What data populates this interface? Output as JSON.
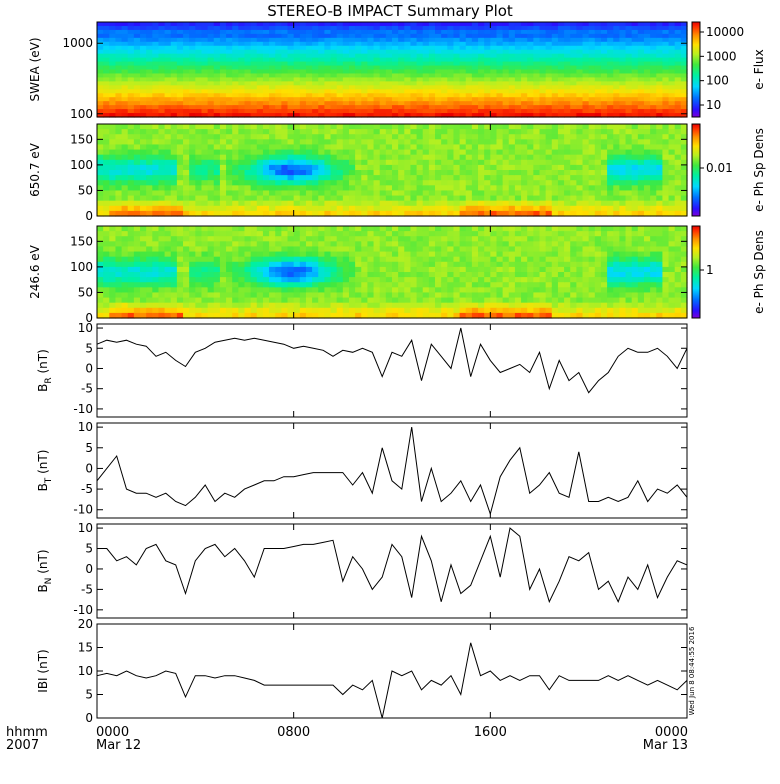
{
  "chart_data": {
    "title": "STEREO-B IMPACT Summary Plot",
    "date_stamp": "Wed Jun  8 08:44:55 2016",
    "x_axis": {
      "label_top": "hhmm",
      "label_bottom": "2007",
      "ticks": [
        {
          "value": 0,
          "top": "0000",
          "bottom": "Mar 12"
        },
        {
          "value": 8,
          "top": "0800",
          "bottom": ""
        },
        {
          "value": 16,
          "top": "1600",
          "bottom": ""
        },
        {
          "value": 24,
          "top": "0000",
          "bottom": "Mar 13"
        }
      ],
      "range_hours": [
        0,
        24
      ]
    },
    "spectrograms": [
      {
        "name": "swea",
        "type": "heatmap",
        "ylabel": "SWEA (eV)",
        "yscale": "log",
        "ylim": [
          90,
          2000
        ],
        "yticks": [
          "1000",
          "100"
        ],
        "ytick_values": [
          1000,
          100
        ],
        "colorbar_label": "e- Flux",
        "colorbar_ticks": [
          "10000",
          "1000",
          "100",
          "10"
        ],
        "colorbar_range_log": [
          0.5,
          4.2
        ]
      },
      {
        "name": "pad-650",
        "type": "heatmap",
        "ylabel": "650.7 eV",
        "ylim": [
          0,
          180
        ],
        "yticks": [
          "150",
          "100",
          "50",
          "0"
        ],
        "ytick_values": [
          150,
          100,
          50,
          0
        ],
        "colorbar_label": "e- Ph Sp Dens",
        "colorbar_ticks": [
          "0.01"
        ]
      },
      {
        "name": "pad-246",
        "type": "heatmap",
        "ylabel": "246.6 eV",
        "ylim": [
          0,
          180
        ],
        "yticks": [
          "150",
          "100",
          "50",
          "0"
        ],
        "ytick_values": [
          150,
          100,
          50,
          0
        ],
        "colorbar_label": "e- Ph Sp Dens",
        "colorbar_ticks": [
          "1"
        ]
      }
    ],
    "line_panels": [
      {
        "name": "br",
        "type": "line",
        "ylabel_main": "B",
        "ylabel_sub": "R",
        "ylabel_unit": " (nT)",
        "ylim": [
          -12,
          11
        ],
        "yticks": [
          "10",
          "5",
          "0",
          "-5",
          "-10"
        ],
        "ytick_values": [
          10,
          5,
          0,
          -5,
          -10
        ],
        "x": [
          0,
          0.4,
          0.8,
          1.2,
          1.6,
          2.0,
          2.4,
          2.8,
          3.2,
          3.6,
          4.0,
          4.4,
          4.8,
          5.2,
          5.6,
          6.0,
          6.4,
          6.8,
          7.2,
          7.6,
          8.0,
          8.4,
          8.8,
          9.2,
          9.6,
          10.0,
          10.4,
          10.8,
          11.2,
          11.6,
          12.0,
          12.4,
          12.8,
          13.2,
          13.6,
          14.0,
          14.4,
          14.8,
          15.2,
          15.6,
          16.0,
          16.4,
          16.8,
          17.2,
          17.6,
          18.0,
          18.4,
          18.8,
          19.2,
          19.6,
          20.0,
          20.4,
          20.8,
          21.2,
          21.6,
          22.0,
          22.4,
          22.8,
          23.2,
          23.6,
          24.0
        ],
        "y": [
          6,
          7,
          6.5,
          7,
          6,
          5.5,
          3,
          4,
          2,
          0.5,
          4,
          5,
          6.5,
          7,
          7.5,
          7,
          7.5,
          7,
          6.5,
          6,
          5,
          5.5,
          5,
          4.5,
          3,
          4.5,
          4,
          5,
          4,
          -2,
          4,
          3,
          7,
          -3,
          6,
          3,
          0,
          10,
          -2,
          6,
          2,
          -1,
          0,
          1,
          -1,
          4,
          -5,
          2,
          -3,
          -1,
          -6,
          -3,
          -1,
          3,
          5,
          4,
          4,
          5,
          3,
          0,
          5
        ]
      },
      {
        "name": "bt",
        "type": "line",
        "ylabel_main": "B",
        "ylabel_sub": "T",
        "ylabel_unit": " (nT)",
        "ylim": [
          -12,
          11
        ],
        "yticks": [
          "10",
          "5",
          "0",
          "-5",
          "-10"
        ],
        "ytick_values": [
          10,
          5,
          0,
          -5,
          -10
        ],
        "x": [
          0,
          0.4,
          0.8,
          1.2,
          1.6,
          2.0,
          2.4,
          2.8,
          3.2,
          3.6,
          4.0,
          4.4,
          4.8,
          5.2,
          5.6,
          6.0,
          6.4,
          6.8,
          7.2,
          7.6,
          8.0,
          8.4,
          8.8,
          9.2,
          9.6,
          10.0,
          10.4,
          10.8,
          11.2,
          11.6,
          12.0,
          12.4,
          12.8,
          13.2,
          13.6,
          14.0,
          14.4,
          14.8,
          15.2,
          15.6,
          16.0,
          16.4,
          16.8,
          17.2,
          17.6,
          18.0,
          18.4,
          18.8,
          19.2,
          19.6,
          20.0,
          20.4,
          20.8,
          21.2,
          21.6,
          22.0,
          22.4,
          22.8,
          23.2,
          23.6,
          24.0
        ],
        "y": [
          -3,
          0,
          3,
          -5,
          -6,
          -6,
          -7,
          -6,
          -8,
          -9,
          -7,
          -4,
          -8,
          -6,
          -7,
          -5,
          -4,
          -3,
          -3,
          -2,
          -2,
          -1.5,
          -1,
          -1,
          -1,
          -1,
          -4,
          -1,
          -6,
          5,
          -3,
          -5,
          10,
          -8,
          0,
          -8,
          -6,
          -3,
          -8,
          -4,
          -11,
          -2,
          2,
          5,
          -6,
          -4,
          -1,
          -6,
          -7,
          4,
          -8,
          -8,
          -7,
          -8,
          -7,
          -3,
          -8,
          -5,
          -6,
          -4,
          -7
        ]
      },
      {
        "name": "bn",
        "type": "line",
        "ylabel_main": "B",
        "ylabel_sub": "N",
        "ylabel_unit": " (nT)",
        "ylim": [
          -12,
          11
        ],
        "yticks": [
          "10",
          "5",
          "0",
          "-5",
          "-10"
        ],
        "ytick_values": [
          10,
          5,
          0,
          -5,
          -10
        ],
        "x": [
          0,
          0.4,
          0.8,
          1.2,
          1.6,
          2.0,
          2.4,
          2.8,
          3.2,
          3.6,
          4.0,
          4.4,
          4.8,
          5.2,
          5.6,
          6.0,
          6.4,
          6.8,
          7.2,
          7.6,
          8.0,
          8.4,
          8.8,
          9.2,
          9.6,
          10.0,
          10.4,
          10.8,
          11.2,
          11.6,
          12.0,
          12.4,
          12.8,
          13.2,
          13.6,
          14.0,
          14.4,
          14.8,
          15.2,
          15.6,
          16.0,
          16.4,
          16.8,
          17.2,
          17.6,
          18.0,
          18.4,
          18.8,
          19.2,
          19.6,
          20.0,
          20.4,
          20.8,
          21.2,
          21.6,
          22.0,
          22.4,
          22.8,
          23.2,
          23.6,
          24.0
        ],
        "y": [
          5,
          5,
          2,
          3,
          1,
          5,
          6,
          2,
          1,
          -6,
          2,
          5,
          6,
          3,
          5,
          2,
          -2,
          5,
          5,
          5,
          5.5,
          6,
          6,
          6.5,
          7,
          -3,
          3,
          0,
          -5,
          -2,
          6,
          3,
          -7,
          8,
          2,
          -8,
          1,
          -6,
          -4,
          2,
          8,
          -2,
          10,
          8,
          -5,
          0,
          -8,
          -3,
          3,
          2,
          4,
          -5,
          -3,
          -8,
          -2,
          -5,
          1,
          -7,
          -2,
          2,
          1
        ]
      },
      {
        "name": "bmag",
        "type": "line",
        "ylabel_main": "IBI",
        "ylabel_sub": "",
        "ylabel_unit": " (nT)",
        "ylim": [
          0,
          20
        ],
        "yticks": [
          "20",
          "15",
          "10",
          "5",
          "0"
        ],
        "ytick_values": [
          20,
          15,
          10,
          5,
          0
        ],
        "x": [
          0,
          0.4,
          0.8,
          1.2,
          1.6,
          2.0,
          2.4,
          2.8,
          3.2,
          3.6,
          4.0,
          4.4,
          4.8,
          5.2,
          5.6,
          6.0,
          6.4,
          6.8,
          7.2,
          7.6,
          8.0,
          8.4,
          8.8,
          9.2,
          9.6,
          10.0,
          10.4,
          10.8,
          11.2,
          11.6,
          12.0,
          12.4,
          12.8,
          13.2,
          13.6,
          14.0,
          14.4,
          14.8,
          15.2,
          15.6,
          16.0,
          16.4,
          16.8,
          17.2,
          17.6,
          18.0,
          18.4,
          18.8,
          19.2,
          19.6,
          20.0,
          20.4,
          20.8,
          21.2,
          21.6,
          22.0,
          22.4,
          22.8,
          23.2,
          23.6,
          24.0
        ],
        "y": [
          9,
          9.5,
          9,
          10,
          9,
          8.5,
          9,
          10,
          9.5,
          4.5,
          9,
          9,
          8.5,
          9,
          9,
          8.5,
          8,
          7,
          7,
          7,
          7,
          7,
          7,
          7,
          7,
          5,
          7,
          6,
          8,
          0,
          10,
          9,
          10,
          6,
          8,
          7,
          9,
          5,
          16,
          9,
          10,
          8,
          9,
          8,
          9,
          9,
          6,
          9,
          8,
          8,
          8,
          8,
          9,
          8,
          9,
          8,
          7,
          8,
          7,
          6,
          8
        ]
      }
    ]
  }
}
